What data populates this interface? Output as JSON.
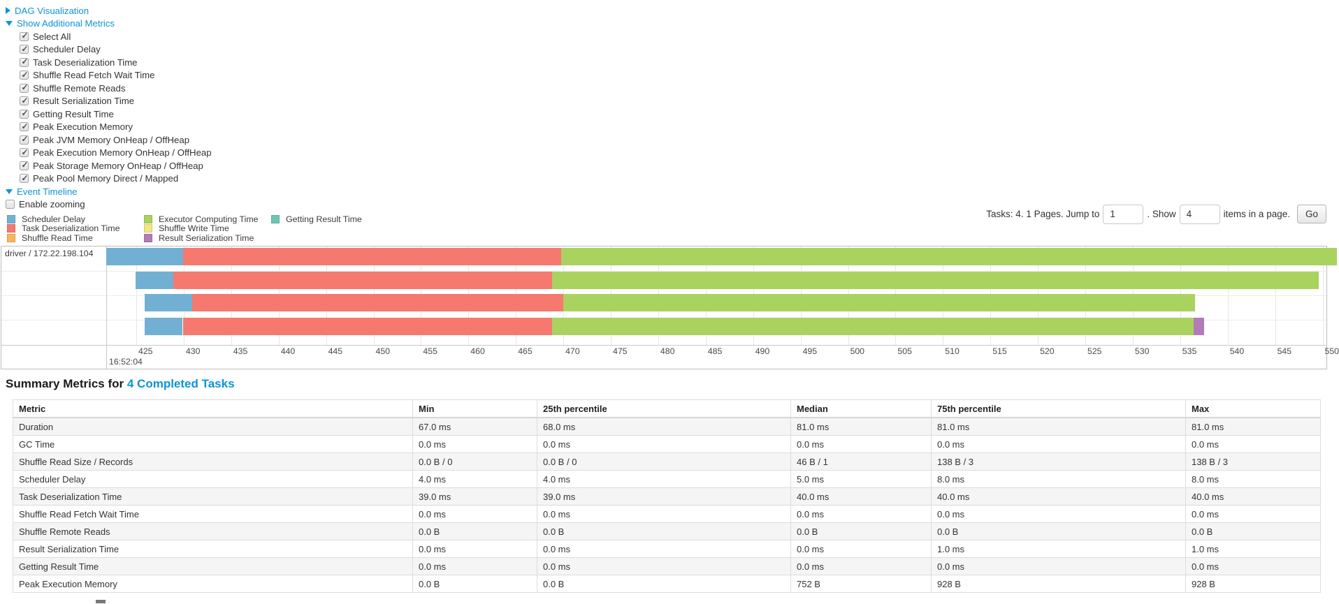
{
  "colors": {
    "scheduler_delay": "#72b0d3",
    "task_deserialization": "#f5796f",
    "shuffle_read": "#f9b45c",
    "executor_computing": "#aad25f",
    "shuffle_write": "#f3e683",
    "result_serialization": "#b27cb8",
    "getting_result": "#6ec5b4",
    "link": "#0c93d8"
  },
  "toggles": {
    "dag": {
      "label": "DAG Visualization",
      "state": "collapsed"
    },
    "additional_metrics": {
      "label": "Show Additional Metrics",
      "state": "expanded"
    },
    "event_timeline": {
      "label": "Event Timeline",
      "state": "expanded"
    }
  },
  "metrics_checkboxes": [
    {
      "label": "Select All",
      "checked": true
    },
    {
      "label": "Scheduler Delay",
      "checked": true
    },
    {
      "label": "Task Deserialization Time",
      "checked": true
    },
    {
      "label": "Shuffle Read Fetch Wait Time",
      "checked": true
    },
    {
      "label": "Shuffle Remote Reads",
      "checked": true
    },
    {
      "label": "Result Serialization Time",
      "checked": true
    },
    {
      "label": "Getting Result Time",
      "checked": true
    },
    {
      "label": "Peak Execution Memory",
      "checked": true
    },
    {
      "label": "Peak JVM Memory OnHeap / OffHeap",
      "checked": true
    },
    {
      "label": "Peak Execution Memory OnHeap / OffHeap",
      "checked": true
    },
    {
      "label": "Peak Storage Memory OnHeap / OffHeap",
      "checked": true
    },
    {
      "label": "Peak Pool Memory Direct / Mapped",
      "checked": true
    }
  ],
  "enable_zooming": {
    "label": "Enable zooming",
    "checked": false
  },
  "legend": {
    "columns": [
      [
        {
          "label": "Scheduler Delay",
          "color_key": "scheduler_delay"
        },
        {
          "label": "Task Deserialization Time",
          "color_key": "task_deserialization"
        },
        {
          "label": "Shuffle Read Time",
          "color_key": "shuffle_read"
        }
      ],
      [
        {
          "label": "Executor Computing Time",
          "color_key": "executor_computing"
        },
        {
          "label": "Shuffle Write Time",
          "color_key": "shuffle_write"
        },
        {
          "label": "Result Serialization Time",
          "color_key": "result_serialization"
        }
      ],
      [
        {
          "label": "Getting Result Time",
          "color_key": "getting_result"
        }
      ]
    ]
  },
  "pagination": {
    "tasks_text": "Tasks: 4. 1 Pages. Jump to",
    "jump_value": "1",
    "show_text": ". Show",
    "show_value": "4",
    "items_text": "items in a page.",
    "go_label": "Go"
  },
  "timeline": {
    "group_label": "driver / 172.22.198.104",
    "time_label": "16:52:04",
    "axis_unit": "ms",
    "axis_ticks": [
      425,
      430,
      435,
      440,
      445,
      450,
      455,
      460,
      465,
      470,
      475,
      480,
      485,
      490,
      495,
      500,
      505,
      510,
      515,
      520,
      525,
      530,
      535,
      540,
      545,
      550
    ],
    "tasks": [
      {
        "name": "task-row-1",
        "segments": [
          [
            "scheduler_delay",
            421.8,
            429.9
          ],
          [
            "task_deserialization",
            429.9,
            469.8
          ],
          [
            "executor_computing",
            469.8,
            551.5
          ]
        ]
      },
      {
        "name": "task-row-2",
        "segments": [
          [
            "scheduler_delay",
            424.9,
            428.9
          ],
          [
            "task_deserialization",
            428.9,
            468.8
          ],
          [
            "executor_computing",
            468.8,
            549.6
          ]
        ]
      },
      {
        "name": "task-row-3",
        "segments": [
          [
            "scheduler_delay",
            425.9,
            430.9
          ],
          [
            "task_deserialization",
            430.9,
            470.0
          ],
          [
            "executor_computing",
            470.0,
            536.6
          ]
        ]
      },
      {
        "name": "task-row-4",
        "segments": [
          [
            "scheduler_delay",
            425.9,
            429.9
          ],
          [
            "task_deserialization",
            429.9,
            468.8
          ],
          [
            "executor_computing",
            468.8,
            536.4
          ],
          [
            "result_serialization",
            536.4,
            537.5
          ]
        ]
      }
    ]
  },
  "summary_metrics": {
    "title_prefix": "Summary Metrics for",
    "title_link": "4 Completed Tasks",
    "headers": [
      "Metric",
      "Min",
      "25th percentile",
      "Median",
      "75th percentile",
      "Max"
    ],
    "rows": [
      {
        "metric": "Duration",
        "values": [
          "67.0 ms",
          "68.0 ms",
          "81.0 ms",
          "81.0 ms",
          "81.0 ms"
        ]
      },
      {
        "metric": "GC Time",
        "values": [
          "0.0 ms",
          "0.0 ms",
          "0.0 ms",
          "0.0 ms",
          "0.0 ms"
        ]
      },
      {
        "metric": "Shuffle Read Size / Records",
        "values": [
          "0.0 B / 0",
          "0.0 B / 0",
          "46 B / 1",
          "138 B / 3",
          "138 B / 3"
        ]
      },
      {
        "metric": "Scheduler Delay",
        "values": [
          "4.0 ms",
          "4.0 ms",
          "5.0 ms",
          "8.0 ms",
          "8.0 ms"
        ]
      },
      {
        "metric": "Task Deserialization Time",
        "values": [
          "39.0 ms",
          "39.0 ms",
          "40.0 ms",
          "40.0 ms",
          "40.0 ms"
        ]
      },
      {
        "metric": "Shuffle Read Fetch Wait Time",
        "values": [
          "0.0 ms",
          "0.0 ms",
          "0.0 ms",
          "0.0 ms",
          "0.0 ms"
        ]
      },
      {
        "metric": "Shuffle Remote Reads",
        "values": [
          "0.0 B",
          "0.0 B",
          "0.0 B",
          "0.0 B",
          "0.0 B"
        ]
      },
      {
        "metric": "Result Serialization Time",
        "values": [
          "0.0 ms",
          "0.0 ms",
          "0.0 ms",
          "1.0 ms",
          "1.0 ms"
        ]
      },
      {
        "metric": "Getting Result Time",
        "values": [
          "0.0 ms",
          "0.0 ms",
          "0.0 ms",
          "0.0 ms",
          "0.0 ms"
        ]
      },
      {
        "metric": "Peak Execution Memory",
        "values": [
          "0.0 B",
          "0.0 B",
          "752 B",
          "928 B",
          "928 B"
        ]
      }
    ]
  }
}
